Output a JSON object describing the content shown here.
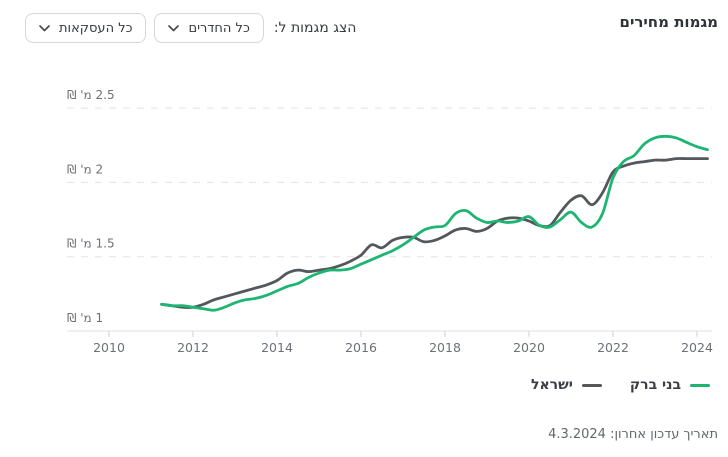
{
  "header": {
    "title": "מגמות מחירים",
    "filter_label": "הצג מגמות ל:",
    "rooms_dropdown": "כל החדרים",
    "deals_dropdown": "כל העסקאות"
  },
  "chart_data": {
    "type": "line",
    "title": "מגמות מחירים",
    "xlabel": "",
    "ylabel": "מ' ₪",
    "grid": "horizontal-dashed",
    "legend_position": "bottom-right",
    "xlim": [
      2009.5,
      2024.7
    ],
    "ylim": [
      0.95,
      2.6
    ],
    "x_ticks": [
      2010,
      2012,
      2014,
      2016,
      2018,
      2020,
      2022,
      2024
    ],
    "y_ticks": [
      {
        "value": 1,
        "label": "1 מ' ₪"
      },
      {
        "value": 1.5,
        "label": "1.5 מ' ₪"
      },
      {
        "value": 2,
        "label": "2 מ' ₪"
      },
      {
        "value": 2.5,
        "label": "2.5 מ' ₪"
      }
    ],
    "x": [
      2011.25,
      2011.5,
      2011.75,
      2012,
      2012.25,
      2012.5,
      2012.75,
      2013,
      2013.25,
      2013.5,
      2013.75,
      2014,
      2014.25,
      2014.5,
      2014.75,
      2015,
      2015.25,
      2015.5,
      2015.75,
      2016,
      2016.25,
      2016.5,
      2016.75,
      2017,
      2017.25,
      2017.5,
      2017.75,
      2018,
      2018.25,
      2018.5,
      2018.75,
      2019,
      2019.25,
      2019.5,
      2019.75,
      2020,
      2020.25,
      2020.5,
      2020.75,
      2021,
      2021.25,
      2021.5,
      2021.75,
      2022,
      2022.25,
      2022.5,
      2022.75,
      2023,
      2023.25,
      2023.5,
      2023.75,
      2024,
      2024.25
    ],
    "series": [
      {
        "name": "בני ברק",
        "color": "#1cb571",
        "values": [
          1.18,
          1.17,
          1.17,
          1.16,
          1.15,
          1.14,
          1.16,
          1.19,
          1.21,
          1.22,
          1.24,
          1.27,
          1.3,
          1.32,
          1.36,
          1.39,
          1.41,
          1.41,
          1.42,
          1.45,
          1.48,
          1.51,
          1.54,
          1.58,
          1.63,
          1.68,
          1.7,
          1.71,
          1.79,
          1.81,
          1.76,
          1.73,
          1.74,
          1.73,
          1.74,
          1.77,
          1.71,
          1.7,
          1.75,
          1.8,
          1.73,
          1.7,
          1.79,
          2.03,
          2.14,
          2.18,
          2.26,
          2.3,
          2.31,
          2.3,
          2.27,
          2.24,
          2.22
        ]
      },
      {
        "name": "ישראל",
        "color": "#54575b",
        "values": [
          1.18,
          1.17,
          1.16,
          1.16,
          1.18,
          1.21,
          1.23,
          1.25,
          1.27,
          1.29,
          1.31,
          1.34,
          1.39,
          1.41,
          1.4,
          1.41,
          1.42,
          1.44,
          1.47,
          1.51,
          1.58,
          1.56,
          1.61,
          1.63,
          1.63,
          1.6,
          1.61,
          1.64,
          1.68,
          1.69,
          1.67,
          1.69,
          1.74,
          1.76,
          1.76,
          1.74,
          1.71,
          1.71,
          1.8,
          1.88,
          1.91,
          1.85,
          1.93,
          2.07,
          2.11,
          2.13,
          2.14,
          2.15,
          2.15,
          2.16,
          2.16,
          2.16,
          2.16
        ]
      }
    ]
  },
  "legend": {
    "items": [
      {
        "label": "בני ברק",
        "color": "#1cb571"
      },
      {
        "label": "ישראל",
        "color": "#54575b"
      }
    ]
  },
  "footer": {
    "last_update": "תאריך עדכון אחרון: 4.3.2024"
  },
  "colors": {
    "gridline": "#e3e3e3",
    "axis_line": "#dde2e8",
    "tick": "#c9d2dc",
    "tick_label": "#6d7177"
  }
}
